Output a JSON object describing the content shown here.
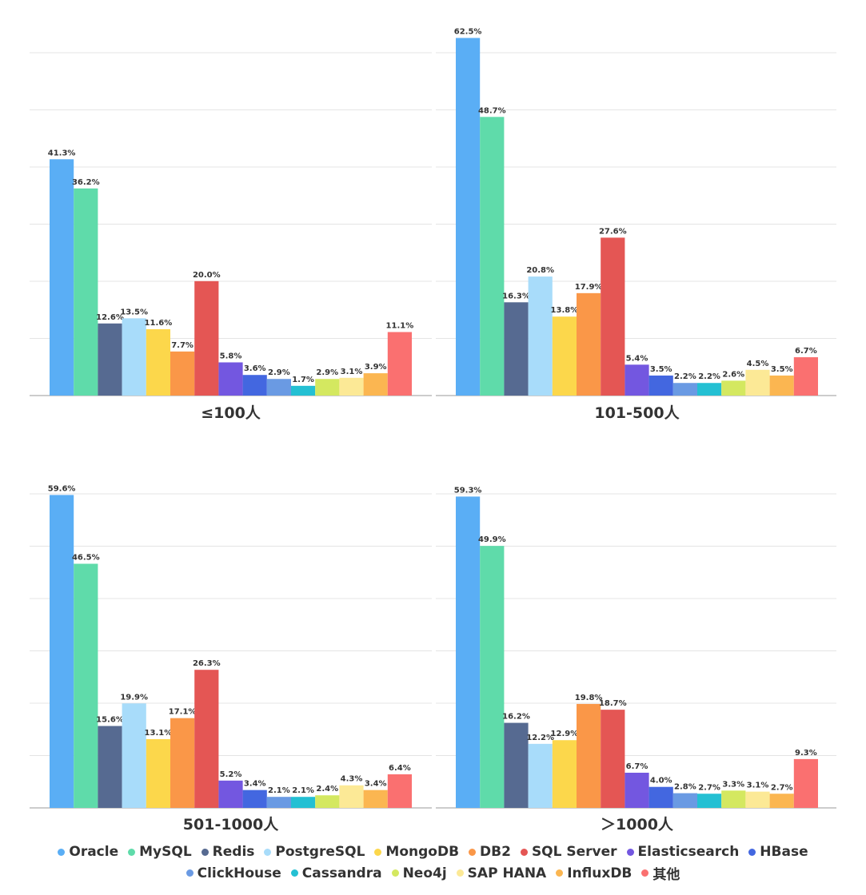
{
  "chart_data": [
    {
      "type": "bar",
      "group": "≤100人",
      "categories": [
        "Oracle",
        "MySQL",
        "Redis",
        "PostgreSQL",
        "MongoDB",
        "DB2",
        "SQL Server",
        "Elasticsearch",
        "HBase",
        "ClickHouse",
        "Cassandra",
        "Neo4j",
        "SAP HANA",
        "InfluxDB",
        "其他"
      ],
      "values": [
        41.3,
        36.2,
        12.6,
        13.5,
        11.6,
        7.7,
        20.0,
        5.8,
        3.6,
        2.9,
        1.7,
        2.9,
        3.1,
        3.9,
        11.1
      ],
      "labels": [
        "41.3%",
        "36.2%",
        "12.6%",
        "13.5%",
        "11.6%",
        "7.7%",
        "20.0%",
        "5.8%",
        "3.6%",
        "2.9%",
        "1.7%",
        "2.9%",
        "3.1%",
        "3.9%",
        "11.1%"
      ],
      "ylim": [
        0,
        60
      ]
    },
    {
      "type": "bar",
      "group": "101-500人",
      "categories": [
        "Oracle",
        "MySQL",
        "Redis",
        "PostgreSQL",
        "MongoDB",
        "DB2",
        "SQL Server",
        "Elasticsearch",
        "HBase",
        "ClickHouse",
        "Cassandra",
        "Neo4j",
        "SAP HANA",
        "InfluxDB",
        "其他"
      ],
      "values": [
        62.5,
        48.7,
        16.3,
        20.8,
        13.8,
        17.9,
        27.6,
        5.4,
        3.5,
        2.2,
        2.2,
        2.6,
        4.5,
        3.5,
        6.7
      ],
      "labels": [
        "62.5%",
        "48.7%",
        "16.3%",
        "20.8%",
        "13.8%",
        "17.9%",
        "27.6%",
        "5.4%",
        "3.5%",
        "2.2%",
        "2.2%",
        "2.6%",
        "4.5%",
        "3.5%",
        "6.7%"
      ],
      "ylim": [
        0,
        60
      ]
    },
    {
      "type": "bar",
      "group": "501-1000人",
      "categories": [
        "Oracle",
        "MySQL",
        "Redis",
        "PostgreSQL",
        "MongoDB",
        "DB2",
        "SQL Server",
        "Elasticsearch",
        "HBase",
        "ClickHouse",
        "Cassandra",
        "Neo4j",
        "SAP HANA",
        "InfluxDB",
        "其他"
      ],
      "values": [
        59.6,
        46.5,
        15.6,
        19.9,
        13.1,
        17.1,
        26.3,
        5.2,
        3.4,
        2.1,
        2.1,
        2.4,
        4.3,
        3.4,
        6.4
      ],
      "labels": [
        "59.6%",
        "46.5%",
        "15.6%",
        "19.9%",
        "13.1%",
        "17.1%",
        "26.3%",
        "5.2%",
        "3.4%",
        "2.1%",
        "2.1%",
        "2.4%",
        "4.3%",
        "3.4%",
        "6.4%"
      ],
      "ylim": [
        0,
        60
      ]
    },
    {
      "type": "bar",
      "group": "＞1000人",
      "categories": [
        "Oracle",
        "MySQL",
        "Redis",
        "PostgreSQL",
        "MongoDB",
        "DB2",
        "SQL Server",
        "Elasticsearch",
        "HBase",
        "ClickHouse",
        "Cassandra",
        "Neo4j",
        "SAP HANA",
        "InfluxDB",
        "其他"
      ],
      "values": [
        59.3,
        49.9,
        16.2,
        12.2,
        12.9,
        19.8,
        18.7,
        6.7,
        4.0,
        2.8,
        2.7,
        3.3,
        3.1,
        2.7,
        9.3
      ],
      "labels": [
        "59.3%",
        "49.9%",
        "16.2%",
        "12.2%",
        "12.9%",
        "19.8%",
        "18.7%",
        "6.7%",
        "4.0%",
        "2.8%",
        "2.7%",
        "3.3%",
        "3.1%",
        "2.7%",
        "9.3%"
      ],
      "ylim": [
        0,
        60
      ]
    }
  ],
  "series_colors": {
    "Oracle": "#5aaef5",
    "MySQL": "#5fdbaa",
    "Redis": "#566a91",
    "PostgreSQL": "#a8dcfa",
    "MongoDB": "#fcd74b",
    "DB2": "#fa9748",
    "SQL Server": "#e45654",
    "Elasticsearch": "#7357e0",
    "HBase": "#4367e0",
    "ClickHouse": "#6a9ae3",
    "Cassandra": "#24c0d3",
    "Neo4j": "#d4e860",
    "SAP HANA": "#fce996",
    "InfluxDB": "#fbb651",
    "其他": "#fa7070"
  },
  "legend": {
    "row1": [
      "Oracle",
      "MySQL",
      "Redis",
      "PostgreSQL",
      "MongoDB",
      "DB2",
      "SQL Server",
      "Elasticsearch",
      "HBase"
    ],
    "row2": [
      "ClickHouse",
      "Cassandra",
      "Neo4j",
      "SAP HANA",
      "InfluxDB",
      "其他"
    ]
  },
  "grid": true,
  "legend_position": "bottom"
}
